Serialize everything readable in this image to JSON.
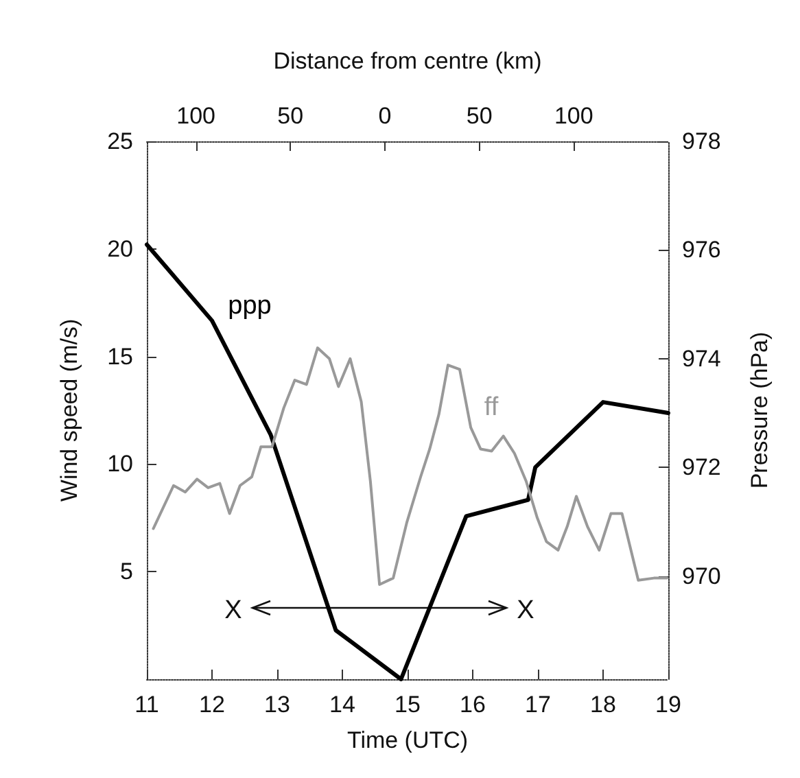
{
  "chart_data": {
    "type": "line",
    "xlabel": "Time (UTC)",
    "ylabel": "Wind speed (m/s)",
    "y2label": "Pressure (hPa)",
    "x2label": "Distance from centre (km)",
    "xlim": [
      11,
      19
    ],
    "xticks": [
      11,
      12,
      13,
      14,
      15,
      16,
      17,
      18,
      19
    ],
    "x2lim": [
      -126,
      150
    ],
    "x2ticks": [
      {
        "value": -100,
        "label": "100"
      },
      {
        "value": -50,
        "label": "50"
      },
      0,
      50,
      100
    ],
    "ylim": [
      0,
      25
    ],
    "yticks": [
      5,
      10,
      15,
      20,
      25
    ],
    "y2lim": [
      968.1,
      978
    ],
    "y2ticks": [
      970,
      972,
      974,
      976,
      978
    ],
    "series": [
      {
        "name": "ppp",
        "color": "#000000",
        "axis": "y2",
        "x": [
          11,
          12.0,
          12.9,
          13.9,
          14.9,
          15.9,
          16.85,
          16.96,
          18.0,
          19.0
        ],
        "values": [
          976.1,
          974.7,
          972.6,
          969.0,
          968.1,
          971.1,
          971.4,
          972.0,
          973.2,
          973.0
        ]
      },
      {
        "name": "ff",
        "color": "#999999",
        "x": [
          11.1,
          11.41,
          11.59,
          11.77,
          11.94,
          12.12,
          12.27,
          12.43,
          12.61,
          12.75,
          12.92,
          13.1,
          13.27,
          13.45,
          13.62,
          13.8,
          13.94,
          14.12,
          14.29,
          14.43,
          14.57,
          14.78,
          14.99,
          15.2,
          15.34,
          15.48,
          15.62,
          15.8,
          15.97,
          16.12,
          16.29,
          16.47,
          16.64,
          16.82,
          16.99,
          17.13,
          17.31,
          17.45,
          17.59,
          17.76,
          17.94,
          18.12,
          18.29,
          18.54,
          18.78,
          18.98
        ],
        "values": [
          7.0,
          9.0,
          8.7,
          9.3,
          8.9,
          9.1,
          7.7,
          9.0,
          9.4,
          10.8,
          10.8,
          12.6,
          13.9,
          13.7,
          15.4,
          14.9,
          13.6,
          14.9,
          12.9,
          9.2,
          4.4,
          4.7,
          7.3,
          9.4,
          10.7,
          12.3,
          14.6,
          14.4,
          11.7,
          10.7,
          10.6,
          11.3,
          10.5,
          9.2,
          7.5,
          6.4,
          6.0,
          7.1,
          8.5,
          7.1,
          6.0,
          7.7,
          7.7,
          4.6,
          4.7,
          4.7
        ]
      }
    ],
    "annotations": [
      "X",
      "X"
    ],
    "grid": false,
    "legend": false,
    "marker": "none",
    "line_style": "solid"
  }
}
